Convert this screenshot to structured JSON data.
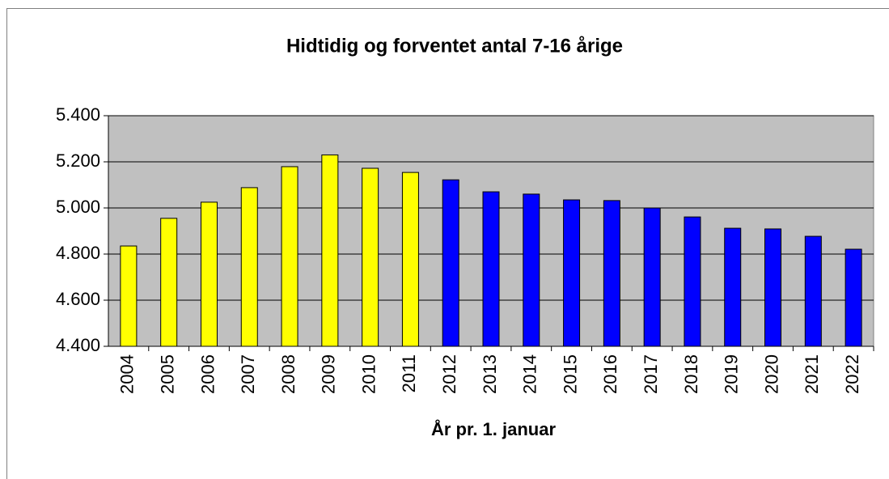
{
  "chart_data": {
    "type": "bar",
    "title": "Hidtidig og forventet antal 7-16 årige",
    "x_label": "År pr. 1. januar",
    "categories": [
      "2004",
      "2005",
      "2006",
      "2007",
      "2008",
      "2009",
      "2010",
      "2011",
      "2012",
      "2013",
      "2014",
      "2015",
      "2016",
      "2017",
      "2018",
      "2019",
      "2020",
      "2021",
      "2022"
    ],
    "values": [
      4835,
      4955,
      5025,
      5088,
      5179,
      5230,
      5172,
      5154,
      5122,
      5070,
      5060,
      5035,
      5032,
      5000,
      4961,
      4912,
      4909,
      4877,
      4821
    ],
    "colors": [
      "#ffff00",
      "#ffff00",
      "#ffff00",
      "#ffff00",
      "#ffff00",
      "#ffff00",
      "#ffff00",
      "#ffff00",
      "#0000ff",
      "#0000ff",
      "#0000ff",
      "#0000ff",
      "#0000ff",
      "#0000ff",
      "#0000ff",
      "#0000ff",
      "#0000ff",
      "#0000ff",
      "#0000ff"
    ],
    "ylim": [
      4400,
      5400
    ],
    "yticks": [
      {
        "value": 4400,
        "label": "4.400"
      },
      {
        "value": 4600,
        "label": "4.600"
      },
      {
        "value": 4800,
        "label": "4.800"
      },
      {
        "value": 5000,
        "label": "5.000"
      },
      {
        "value": 5200,
        "label": "5.200"
      },
      {
        "value": 5400,
        "label": "5.400"
      }
    ],
    "grid": true,
    "plot_background": "#c0c0c0"
  }
}
